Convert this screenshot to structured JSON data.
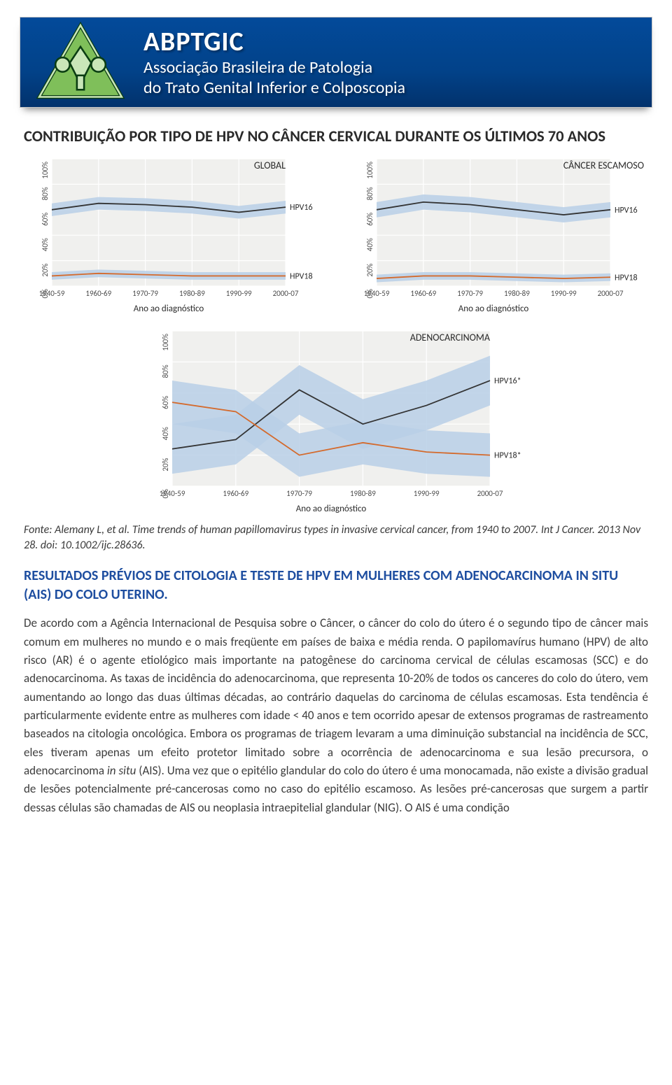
{
  "banner": {
    "abbr": "ABPTGIC",
    "line1": "Associação Brasileira de Patologia",
    "line2": "do Trato Genital Inferior e Colposcopia",
    "bg_gradient": [
      "#034a9a",
      "#02326c"
    ],
    "text_color": "#ffffff",
    "logo_stroke": "#0a3d12",
    "logo_fill": "#7fbf5a"
  },
  "panel_title": "CONTRIBUIÇÃO POR TIPO DE HPV NO CÂNCER CERVICAL DURANTE OS ÚLTIMOS 70 ANOS",
  "chart_common": {
    "x_categories": [
      "1940-59",
      "1960-69",
      "1970-79",
      "1980-89",
      "1990-99",
      "2000-07"
    ],
    "x_label": "Ano ao diagnóstico",
    "y_ticks": [
      "0%",
      "20%",
      "40%",
      "60%",
      "80%",
      "100%"
    ],
    "ylim": [
      0,
      100
    ],
    "plot_bg": "#f0f0ee",
    "grid_color": "#ffffff",
    "band_color": "#b9cfe6",
    "band_opacity": 0.85,
    "hpv16_line_color": "#333333",
    "hpv18_line_color": "#d46a2c",
    "axis_text_color": "#4a4a4a",
    "label_fontsize": 13,
    "tick_fontsize": 11
  },
  "chart_global": {
    "title": "GLOBAL",
    "series": {
      "HPV16": {
        "values": [
          60,
          65,
          64,
          62,
          58,
          62
        ],
        "band": 5
      },
      "HPV18": {
        "values": [
          8,
          10,
          9,
          8,
          8,
          8
        ],
        "band": 3
      }
    },
    "labels": [
      "HPV16",
      "HPV18"
    ]
  },
  "chart_squamous": {
    "title": "CÂNCER ESCAMOSO",
    "series": {
      "HPV16": {
        "values": [
          60,
          66,
          64,
          60,
          56,
          60
        ],
        "band": 6
      },
      "HPV18": {
        "values": [
          6,
          8,
          8,
          7,
          6,
          7
        ],
        "band": 3
      }
    },
    "labels": [
      "HPV16",
      "HPV18"
    ]
  },
  "chart_adeno": {
    "title": "ADENOCARCINOMA",
    "series": {
      "HPV16": {
        "values": [
          24,
          30,
          62,
          40,
          52,
          68
        ],
        "band": 16
      },
      "HPV18": {
        "values": [
          54,
          48,
          20,
          28,
          22,
          20
        ],
        "band": 14
      }
    },
    "labels": [
      "HPV16*",
      "HPV18*"
    ]
  },
  "source_text": "Fonte: Alemany L, et al. Time trends of human papillomavirus types in invasive cervical cancer, from 1940 to 2007. Int J Cancer. 2013 Nov 28. doi: 10.1002/ijc.28636.",
  "section_heading": "RESULTADOS PRÉVIOS DE CITOLOGIA E TESTE DE HPV EM MULHERES COM ADENOCARCINOMA IN SITU (AIS) DO COLO UTERINO.",
  "body_html": "De acordo com a Agência Internacional de Pesquisa sobre o Câncer, o câncer do colo do útero é o segundo tipo de câncer mais comum em mulheres no mundo e o mais freqüente em países de baixa e média renda. O papilomavírus humano (HPV) de alto risco (AR) é o agente etiológico mais importante na patogênese do carcinoma cervical de células escamosas (SCC) e do adenocarcinoma. As taxas de incidência do adenocarcinoma, que representa 10-20% de todos os canceres do colo do útero, vem aumentando ao longo das duas últimas décadas, ao contrário daquelas do carcinoma de células escamosas. Esta tendência é particularmente evidente entre as mulheres com idade < 40 anos e tem ocorrido apesar de extensos programas de rastreamento baseados na citologia oncológica. Embora os programas de triagem levaram a uma diminuição substancial na incidência de SCC, eles tiveram apenas um efeito protetor limitado sobre a ocorrência de adenocarcinoma e sua lesão precursora, o adenocarcinoma <i>in situ</i> (AIS). Uma vez que o epitélio glandular do colo do útero é uma monocamada, não existe a divisão gradual de lesões potencialmente pré-cancerosas como no caso do epitélio escamoso. As lesões pré-cancerosas que surgem a partir dessas células são chamadas de AIS ou neoplasia intraepitelial glandular (NIG). O AIS é uma condição"
}
